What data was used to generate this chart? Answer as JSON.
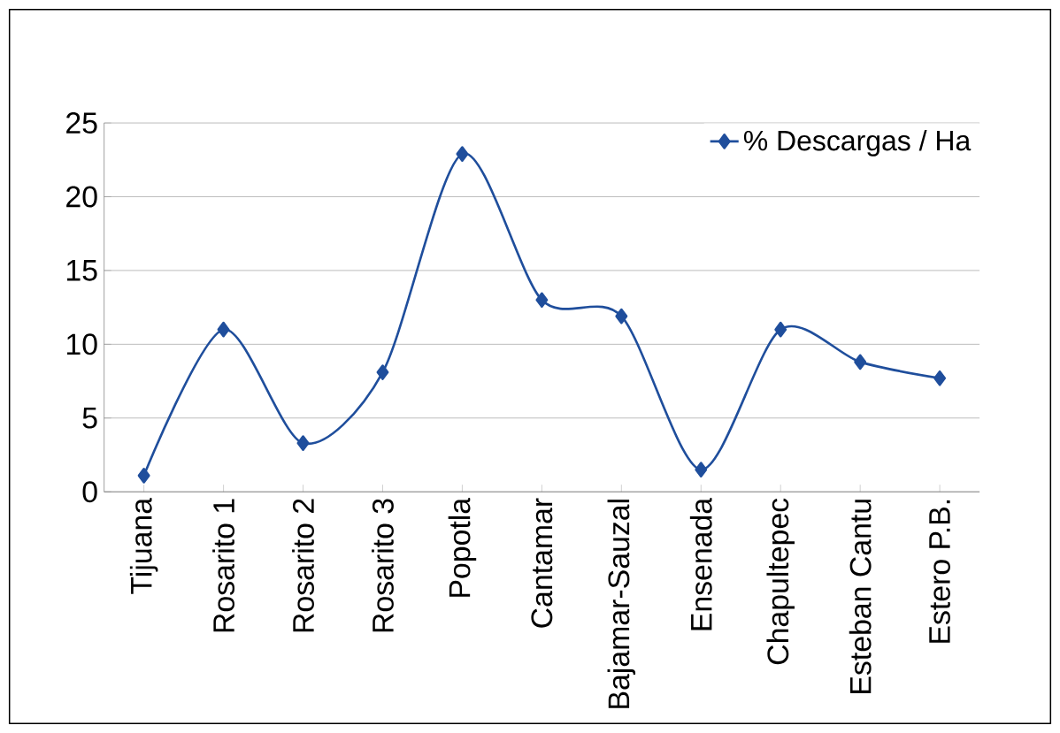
{
  "chart_data": {
    "type": "line",
    "categories": [
      "Tijuana",
      "Rosarito 1",
      "Rosarito 2",
      "Rosarito 3",
      "Popotla",
      "Cantamar",
      "Bajamar-Sauzal",
      "Ensenada",
      "Chapultepec",
      "Esteban Cantu",
      "Estero P.B."
    ],
    "series": [
      {
        "name": "% Descargas / Ha",
        "color": "#1f4e9c",
        "values": [
          1.1,
          11.0,
          3.3,
          8.1,
          22.9,
          13.0,
          11.9,
          1.5,
          11.0,
          8.8,
          7.7
        ]
      }
    ],
    "ylim": [
      0,
      25
    ],
    "yticks": [
      0,
      5,
      10,
      15,
      20,
      25
    ],
    "grid": "y",
    "legend": "top right",
    "marker": "diamond",
    "line_style": "solid"
  }
}
